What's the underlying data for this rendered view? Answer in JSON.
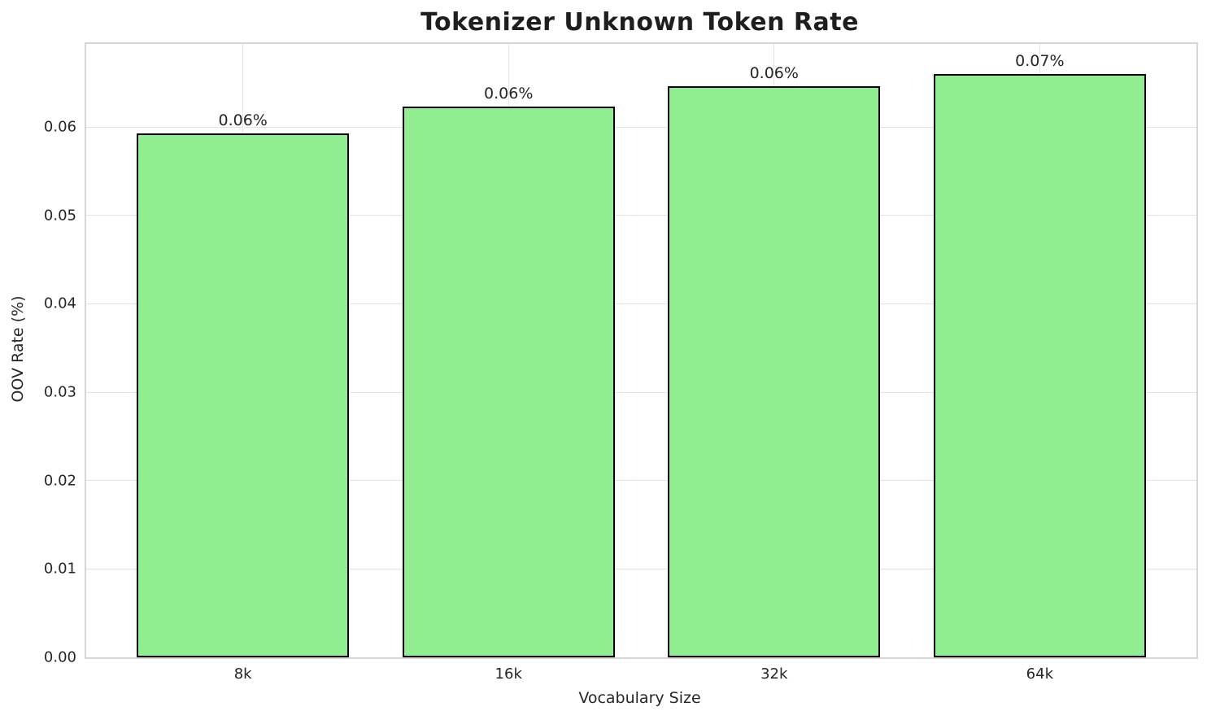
{
  "title": "Tokenizer Unknown Token Rate",
  "chart_data": {
    "type": "bar",
    "title": "Tokenizer Unknown Token Rate",
    "xlabel": "Vocabulary Size",
    "ylabel": "OOV Rate (%)",
    "categories": [
      "8k",
      "16k",
      "32k",
      "64k"
    ],
    "values": [
      0.0593,
      0.0623,
      0.0646,
      0.066
    ],
    "bar_labels": [
      "0.06%",
      "0.06%",
      "0.06%",
      "0.07%"
    ],
    "yticks": [
      0.0,
      0.01,
      0.02,
      0.03,
      0.04,
      0.05,
      0.06
    ],
    "ytick_labels": [
      "0.00",
      "0.01",
      "0.02",
      "0.03",
      "0.04",
      "0.05",
      "0.06"
    ],
    "ylim": [
      0,
      0.0694
    ],
    "xlim": [
      -0.59,
      3.59
    ],
    "bar_rel_width": 0.8,
    "grid": true,
    "legend": null,
    "colors": {
      "bar_fill": "#90EE90",
      "bar_edge": "#000000",
      "grid": "#e4e4e4",
      "spine": "#d6d6d6",
      "text": "#262626",
      "background": "#ffffff"
    }
  }
}
